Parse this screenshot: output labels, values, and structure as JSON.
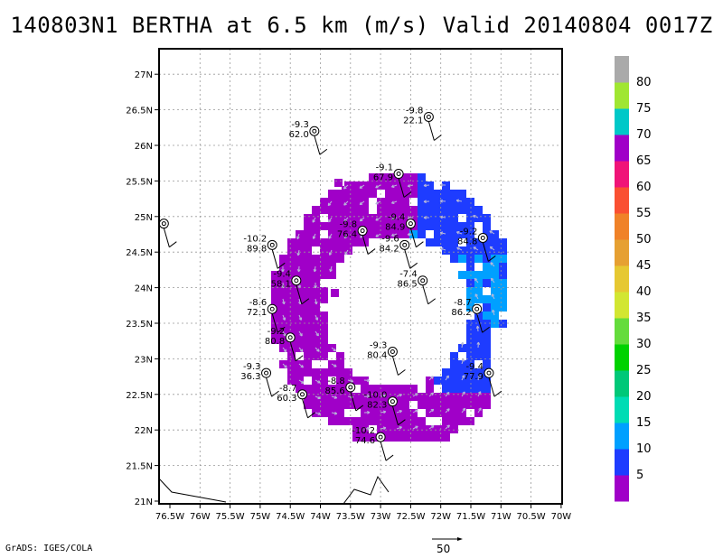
{
  "header": {
    "title": "140803N1 BERTHA at 6.5 km (m/s) Valid 20140804 0017Z"
  },
  "axes": {
    "x_ticks": [
      "76.5W",
      "76W",
      "75.5W",
      "75W",
      "74.5W",
      "74W",
      "73.5W",
      "73W",
      "72.5W",
      "72W",
      "71.5W",
      "71W",
      "70.5W",
      "70W"
    ],
    "y_ticks": [
      "21N",
      "21.5N",
      "22N",
      "22.5N",
      "23N",
      "23.5N",
      "24N",
      "24.5N",
      "25N",
      "25.5N",
      "26N",
      "26.5N",
      "27N"
    ]
  },
  "colorbar": {
    "labels": [
      "5",
      "10",
      "15",
      "20",
      "25",
      "30",
      "35",
      "40",
      "45",
      "50",
      "55",
      "60",
      "65",
      "70",
      "75",
      "80"
    ],
    "colors": [
      "#a000c8",
      "#1e3cff",
      "#00a0ff",
      "#00dcb4",
      "#00c878",
      "#00d200",
      "#64dc3c",
      "#d2e632",
      "#e6c832",
      "#e6a032",
      "#f08228",
      "#fa5032",
      "#f01478",
      "#a000c8",
      "#00c8c8",
      "#a0e632",
      "#aaaaaa"
    ]
  },
  "stations": [
    {
      "lon": -74.1,
      "lat": 26.2,
      "top": "-9.3",
      "bottom": "62.0"
    },
    {
      "lon": -72.2,
      "lat": 26.4,
      "top": "-9.8",
      "bottom": "22.1"
    },
    {
      "lon": -72.7,
      "lat": 25.6,
      "top": "-9.1",
      "bottom": "67.9"
    },
    {
      "lon": -73.3,
      "lat": 24.8,
      "top": "-9.8",
      "bottom": "76.4"
    },
    {
      "lon": -74.8,
      "lat": 24.6,
      "top": "-10.2",
      "bottom": "89.8"
    },
    {
      "lon": -72.6,
      "lat": 24.6,
      "top": "-9.6",
      "bottom": "84.2"
    },
    {
      "lon": -72.5,
      "lat": 24.9,
      "top": "-9.4",
      "bottom": "84.9"
    },
    {
      "lon": -71.3,
      "lat": 24.7,
      "top": "-9.2",
      "bottom": "84.8"
    },
    {
      "lon": -74.4,
      "lat": 24.1,
      "top": "-9.4",
      "bottom": "58.1"
    },
    {
      "lon": -72.3,
      "lat": 24.1,
      "top": "-7.4",
      "bottom": "86.5"
    },
    {
      "lon": -74.8,
      "lat": 23.7,
      "top": "-8.6",
      "bottom": "72.1"
    },
    {
      "lon": -71.4,
      "lat": 23.7,
      "top": "-8.7",
      "bottom": "86.2"
    },
    {
      "lon": -74.5,
      "lat": 23.3,
      "top": "-9.2",
      "bottom": "80.8"
    },
    {
      "lon": -72.8,
      "lat": 23.1,
      "top": "-9.3",
      "bottom": "80.4"
    },
    {
      "lon": -74.9,
      "lat": 22.8,
      "top": "-9.3",
      "bottom": "36.3"
    },
    {
      "lon": -71.2,
      "lat": 22.8,
      "top": "-9.4",
      "bottom": "77.9"
    },
    {
      "lon": -73.5,
      "lat": 22.6,
      "top": "-8.8",
      "bottom": "85.6"
    },
    {
      "lon": -74.3,
      "lat": 22.5,
      "top": "-8.7",
      "bottom": "60.3"
    },
    {
      "lon": -72.8,
      "lat": 22.4,
      "top": "-10.0",
      "bottom": "82.3"
    },
    {
      "lon": -73.0,
      "lat": 21.9,
      "top": "-10.2",
      "bottom": "74.6"
    },
    {
      "lon": -76.6,
      "lat": 24.9,
      "top": "",
      "bottom": ""
    }
  ],
  "footer": {
    "credit": "GrADS: IGES/COLA",
    "reference_vector_label": "50"
  }
}
